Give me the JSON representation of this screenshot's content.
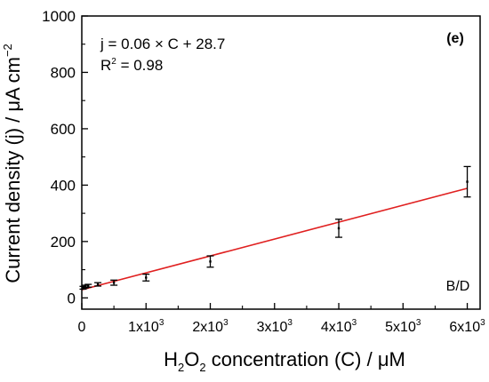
{
  "chart_data": {
    "type": "scatter",
    "panel_label": "(e)",
    "sample_label": "B/D",
    "ylabel": {
      "main": "Current density (j) / μA cm",
      "sup": "−2"
    },
    "xlabel": {
      "h": "H",
      "sub1": "2",
      "o": "O",
      "sub2": "2",
      "rest": " concentration (C) /  μM"
    },
    "equation": "j = 0.06 × C + 28.7",
    "r2": {
      "r": "R",
      "sup": "2",
      "rest": " = 0.98"
    },
    "xlim": [
      0,
      6200
    ],
    "ylim": [
      -40,
      1000
    ],
    "yticks": [
      0,
      200,
      400,
      600,
      800,
      1000
    ],
    "ytick_labels": [
      "0",
      "200",
      "400",
      "600",
      "800",
      "1000"
    ],
    "xticks": [
      0,
      1000,
      2000,
      3000,
      4000,
      5000,
      6000
    ],
    "xtick_labels": [
      {
        "coef": "0",
        "exp": ""
      },
      {
        "coef": "1x10",
        "exp": "3"
      },
      {
        "coef": "2x10",
        "exp": "3"
      },
      {
        "coef": "3x10",
        "exp": "3"
      },
      {
        "coef": "4x10",
        "exp": "3"
      },
      {
        "coef": "5x10",
        "exp": "3"
      },
      {
        "coef": "6x10",
        "exp": "3"
      }
    ],
    "points": [
      {
        "x": 20,
        "y": 36,
        "err": 5
      },
      {
        "x": 50,
        "y": 40,
        "err": 5
      },
      {
        "x": 100,
        "y": 43,
        "err": 5
      },
      {
        "x": 250,
        "y": 48,
        "err": 6
      },
      {
        "x": 500,
        "y": 54,
        "err": 9
      },
      {
        "x": 1000,
        "y": 72,
        "err": 12
      },
      {
        "x": 2000,
        "y": 129,
        "err": 20
      },
      {
        "x": 4000,
        "y": 247,
        "err": 32
      },
      {
        "x": 6000,
        "y": 412,
        "err": 54
      }
    ],
    "fit": {
      "slope": 0.06,
      "intercept": 28.7,
      "x_range": [
        0,
        6000
      ],
      "color": "#e02020"
    },
    "grid": false,
    "legend": "none"
  }
}
